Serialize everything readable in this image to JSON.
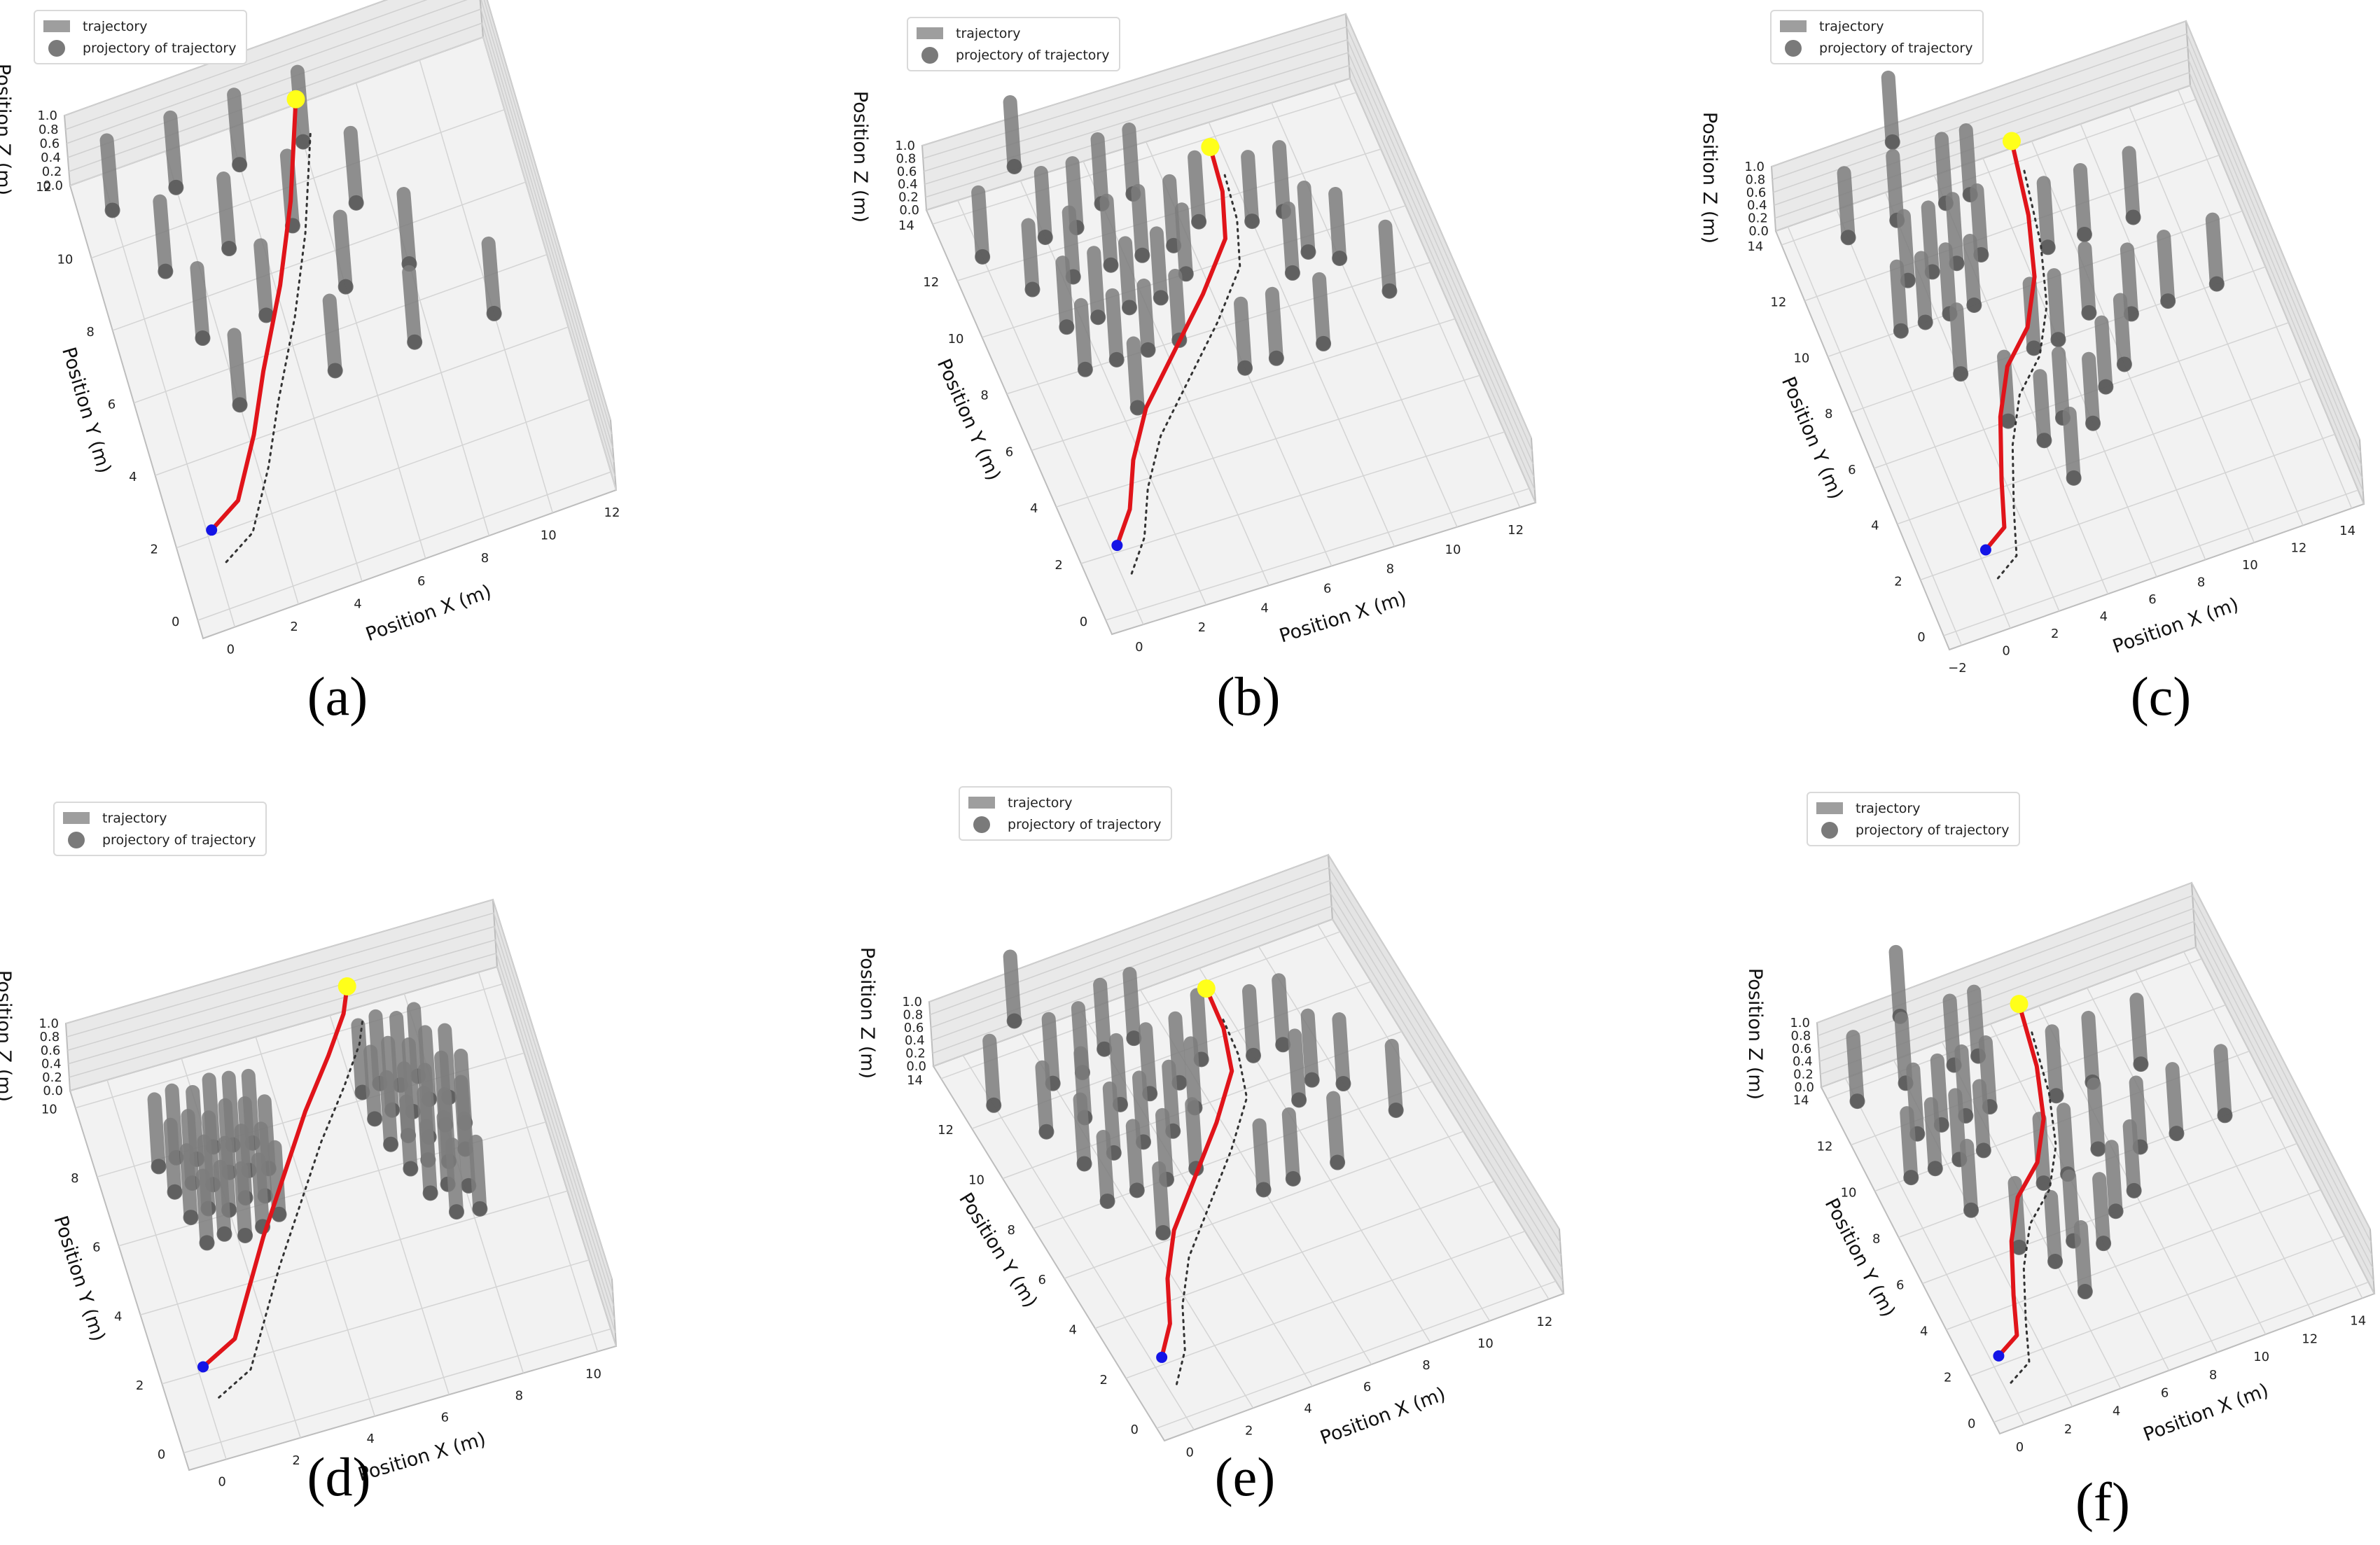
{
  "legend": {
    "trajectory": "trajectory",
    "projection": "projectory of trajectory"
  },
  "colors": {
    "trajectory_line": "#e0141a",
    "start_point": "#1414e6",
    "goal_point": "#ffff1a",
    "obstacle": "#7d7d7d",
    "projection_line": "#333333"
  },
  "chart_data": [
    {
      "id": "a",
      "label": "(a)",
      "type": "3d-trajectory",
      "xlabel": "Position X (m)",
      "ylabel": "Position Y (m)",
      "zlabel": "Position Z (m)",
      "xticks": [
        "0",
        "2",
        "4",
        "6",
        "8",
        "10",
        "12"
      ],
      "yticks": [
        "0",
        "2",
        "4",
        "6",
        "8",
        "10",
        "12"
      ],
      "zticks": [
        "0.0",
        "0.2",
        "0.4",
        "0.6",
        "0.8",
        "1.0"
      ],
      "xlim": [
        -1,
        12
      ],
      "ylim": [
        -0.5,
        12
      ],
      "zlim": [
        0,
        1
      ],
      "start": [
        0,
        1.5
      ],
      "goal": [
        6,
        11.5
      ],
      "path": [
        [
          0,
          1.5
        ],
        [
          1,
          2
        ],
        [
          2,
          3.5
        ],
        [
          2.8,
          5
        ],
        [
          3.4,
          6
        ],
        [
          4,
          7
        ],
        [
          4.5,
          8
        ],
        [
          5,
          9
        ],
        [
          5.4,
          10
        ],
        [
          5.8,
          11
        ],
        [
          6,
          11.5
        ]
      ],
      "obstacles": [
        [
          0,
          11
        ],
        [
          2,
          11
        ],
        [
          4,
          11
        ],
        [
          6,
          11
        ],
        [
          1,
          9
        ],
        [
          3,
          9
        ],
        [
          5,
          9
        ],
        [
          7,
          9
        ],
        [
          1.5,
          7
        ],
        [
          3.5,
          7
        ],
        [
          6,
          7
        ],
        [
          8,
          7
        ],
        [
          2,
          5
        ],
        [
          5,
          5
        ],
        [
          7.5,
          5
        ],
        [
          10,
          5
        ]
      ]
    },
    {
      "id": "b",
      "label": "(b)",
      "type": "3d-trajectory",
      "xlabel": "Position X (m)",
      "ylabel": "Position Y (m)",
      "zlabel": "Position Z (m)",
      "xticks": [
        "0",
        "2",
        "4",
        "6",
        "8",
        "10",
        "12"
      ],
      "yticks": [
        "0",
        "2",
        "4",
        "6",
        "8",
        "10",
        "12",
        "14"
      ],
      "zticks": [
        "0.0",
        "0.2",
        "0.4",
        "0.6",
        "0.8",
        "1.0"
      ],
      "xlim": [
        -1,
        12.5
      ],
      "ylim": [
        -0.5,
        14.5
      ],
      "zlim": [
        0,
        1
      ],
      "start": [
        0,
        1.5
      ],
      "goal": [
        7.5,
        13
      ],
      "path": [
        [
          0,
          1.5
        ],
        [
          0.8,
          2.5
        ],
        [
          1.5,
          4
        ],
        [
          2.5,
          5.5
        ],
        [
          4,
          7
        ],
        [
          5.5,
          8.5
        ],
        [
          6.8,
          10
        ],
        [
          7.3,
          11.5
        ],
        [
          7.5,
          13
        ]
      ],
      "obstacles": [
        [
          2,
          15
        ],
        [
          0,
          12.5
        ],
        [
          2,
          12.5
        ],
        [
          3,
          12.5
        ],
        [
          4,
          13
        ],
        [
          5,
          13
        ],
        [
          1,
          11
        ],
        [
          2.3,
          11
        ],
        [
          3.5,
          11
        ],
        [
          4.5,
          11
        ],
        [
          5.5,
          11
        ],
        [
          6.5,
          11.5
        ],
        [
          1.5,
          9.5
        ],
        [
          2.5,
          9.5
        ],
        [
          3.5,
          9.5
        ],
        [
          4.5,
          9.5
        ],
        [
          5.5,
          10
        ],
        [
          8,
          11
        ],
        [
          9,
          11
        ],
        [
          1.5,
          8
        ],
        [
          2.5,
          8
        ],
        [
          3.5,
          8
        ],
        [
          4.5,
          8
        ],
        [
          8.5,
          9
        ],
        [
          9.2,
          9.5
        ],
        [
          10,
          9
        ],
        [
          6,
          6.5
        ],
        [
          7,
          6.5
        ],
        [
          8.5,
          6.5
        ],
        [
          11,
          7.5
        ],
        [
          2.5,
          6.3
        ]
      ]
    },
    {
      "id": "c",
      "label": "(c)",
      "type": "3d-trajectory",
      "xlabel": "Position X (m)",
      "ylabel": "Position Y (m)",
      "zlabel": "Position Z (m)",
      "xticks": [
        "−2",
        "0",
        "2",
        "4",
        "6",
        "8",
        "10",
        "12",
        "14"
      ],
      "yticks": [
        "0",
        "2",
        "4",
        "6",
        "8",
        "10",
        "12",
        "14"
      ],
      "zticks": [
        "0.0",
        "0.2",
        "0.4",
        "0.6",
        "0.8",
        "1.0"
      ],
      "xlim": [
        -2.5,
        14.5
      ],
      "ylim": [
        -0.5,
        14.5
      ],
      "zlim": [
        0,
        1
      ],
      "start": [
        0,
        1.5
      ],
      "goal": [
        7,
        14
      ],
      "path": [
        [
          0,
          1.5
        ],
        [
          1,
          2
        ],
        [
          1.6,
          3.5
        ],
        [
          2.5,
          5.5
        ],
        [
          3.5,
          7
        ],
        [
          4.8,
          8
        ],
        [
          5.8,
          9.5
        ],
        [
          6.5,
          11.5
        ],
        [
          7,
          14
        ]
      ],
      "obstacles": [
        [
          3,
          16
        ],
        [
          0,
          13.5
        ],
        [
          2,
          13.5
        ],
        [
          4,
          13.5
        ],
        [
          5,
          13.5
        ],
        [
          1.5,
          11.5
        ],
        [
          2.5,
          11.5
        ],
        [
          3.5,
          11.5
        ],
        [
          4.5,
          11.5
        ],
        [
          0.5,
          10
        ],
        [
          1.5,
          10
        ],
        [
          2.5,
          10
        ],
        [
          3.5,
          10
        ],
        [
          7,
          11
        ],
        [
          8.5,
          11
        ],
        [
          10.5,
          11
        ],
        [
          2,
          8
        ],
        [
          5,
          8
        ],
        [
          6,
          8
        ],
        [
          7.5,
          8.5
        ],
        [
          9,
          8
        ],
        [
          10.5,
          8
        ],
        [
          12.5,
          8
        ],
        [
          3,
          6
        ],
        [
          4,
          5
        ],
        [
          5,
          5.5
        ],
        [
          6,
          5
        ],
        [
          7,
          6
        ],
        [
          8,
          6.5
        ],
        [
          4.5,
          3.5
        ]
      ]
    },
    {
      "id": "d",
      "label": "(d)",
      "type": "3d-trajectory",
      "xlabel": "Position X (m)",
      "ylabel": "Position Y (m)",
      "zlabel": "Position Z (m)",
      "xticks": [
        "0",
        "2",
        "4",
        "6",
        "8",
        "10"
      ],
      "yticks": [
        "0",
        "2",
        "4",
        "6",
        "8",
        "10"
      ],
      "zticks": [
        "0.0",
        "0.2",
        "0.4",
        "0.6",
        "0.8",
        "1.0"
      ],
      "xlim": [
        -1,
        10.5
      ],
      "ylim": [
        -0.5,
        10.5
      ],
      "zlim": [
        0,
        1
      ],
      "start": [
        0,
        1.5
      ],
      "goal": [
        6.5,
        10.5
      ],
      "path": [
        [
          0,
          1.5
        ],
        [
          1,
          2
        ],
        [
          1.6,
          3
        ],
        [
          2.5,
          4.5
        ],
        [
          3.5,
          6
        ],
        [
          4.5,
          7.5
        ],
        [
          5.5,
          8.8
        ],
        [
          6.2,
          9.8
        ],
        [
          6.5,
          10.5
        ]
      ],
      "obstacles": [
        [
          0.6,
          7.8
        ],
        [
          1.1,
          7.9
        ],
        [
          1.6,
          7.7
        ],
        [
          2.1,
          7.9
        ],
        [
          2.6,
          7.8
        ],
        [
          3.1,
          7.7
        ],
        [
          0.8,
          7
        ],
        [
          1.3,
          7.1
        ],
        [
          1.8,
          6.9
        ],
        [
          2.3,
          7.1
        ],
        [
          2.8,
          7
        ],
        [
          3.3,
          6.9
        ],
        [
          1,
          6.2
        ],
        [
          1.5,
          6.3
        ],
        [
          2,
          6.1
        ],
        [
          2.5,
          6.3
        ],
        [
          3,
          6.2
        ],
        [
          1.2,
          5.4
        ],
        [
          1.7,
          5.5
        ],
        [
          2.2,
          5.3
        ],
        [
          2.7,
          5.4
        ],
        [
          3.2,
          5.6
        ],
        [
          6.2,
          8.2
        ],
        [
          6.7,
          8.3
        ],
        [
          7.2,
          8.1
        ],
        [
          7.7,
          8.2
        ],
        [
          6.3,
          7.4
        ],
        [
          6.8,
          7.5
        ],
        [
          7.3,
          7.3
        ],
        [
          7.8,
          7.5
        ],
        [
          8.3,
          7.4
        ],
        [
          6.5,
          6.6
        ],
        [
          7,
          6.7
        ],
        [
          7.5,
          6.5
        ],
        [
          8,
          6.7
        ],
        [
          8.5,
          6.6
        ],
        [
          6.8,
          5.8
        ],
        [
          7.3,
          5.9
        ],
        [
          7.8,
          5.7
        ],
        [
          8.3,
          5.9
        ],
        [
          7.1,
          5
        ],
        [
          7.6,
          5.1
        ],
        [
          8.1,
          4.9
        ],
        [
          7.6,
          4.3
        ],
        [
          8.2,
          4.2
        ]
      ]
    },
    {
      "id": "e",
      "label": "(e)",
      "type": "3d-trajectory",
      "xlabel": "Position X (m)",
      "ylabel": "Position Y (m)",
      "zlabel": "Position Z (m)",
      "xticks": [
        "0",
        "2",
        "4",
        "6",
        "8",
        "10",
        "12"
      ],
      "yticks": [
        "0",
        "2",
        "4",
        "6",
        "8",
        "10",
        "12",
        "14"
      ],
      "zticks": [
        "0.0",
        "0.2",
        "0.4",
        "0.6",
        "0.8",
        "1.0"
      ],
      "xlim": [
        -1,
        12.5
      ],
      "ylim": [
        -0.5,
        14.5
      ],
      "zlim": [
        0,
        1
      ],
      "start": [
        0,
        1.5
      ],
      "goal": [
        7.5,
        13
      ],
      "path": [
        [
          0,
          1.5
        ],
        [
          0.8,
          2.5
        ],
        [
          1.5,
          4
        ],
        [
          2.5,
          5.5
        ],
        [
          4,
          7
        ],
        [
          5.5,
          8.5
        ],
        [
          6.8,
          10
        ],
        [
          7.3,
          11.5
        ],
        [
          7.5,
          13
        ]
      ],
      "obstacles": [
        [
          2,
          15
        ],
        [
          0,
          12.5
        ],
        [
          2,
          12.5
        ],
        [
          3,
          12.5
        ],
        [
          4,
          13
        ],
        [
          5,
          13
        ],
        [
          1,
          11
        ],
        [
          2.3,
          11
        ],
        [
          3.5,
          11
        ],
        [
          4.5,
          11
        ],
        [
          5.5,
          11
        ],
        [
          6.5,
          11.5
        ],
        [
          1.5,
          9.5
        ],
        [
          2.5,
          9.5
        ],
        [
          3.5,
          9.5
        ],
        [
          4.5,
          9.5
        ],
        [
          5.5,
          10
        ],
        [
          8,
          11
        ],
        [
          9,
          11
        ],
        [
          1.5,
          8
        ],
        [
          2.5,
          8
        ],
        [
          3.5,
          8
        ],
        [
          4.5,
          8
        ],
        [
          8.5,
          9
        ],
        [
          9.2,
          9.5
        ],
        [
          10,
          9
        ],
        [
          6,
          6.5
        ],
        [
          7,
          6.5
        ],
        [
          8.5,
          6.5
        ],
        [
          11,
          7.5
        ],
        [
          2.5,
          6.3
        ]
      ]
    },
    {
      "id": "f",
      "label": "(f)",
      "type": "3d-trajectory",
      "xlabel": "Position X (m)",
      "ylabel": "Position Y (m)",
      "zlabel": "Position Z (m)",
      "xticks": [
        "0",
        "2",
        "4",
        "6",
        "8",
        "10",
        "12",
        "14"
      ],
      "yticks": [
        "0",
        "2",
        "4",
        "6",
        "8",
        "10",
        "12",
        "14"
      ],
      "zticks": [
        "0.0",
        "0.2",
        "0.4",
        "0.6",
        "0.8",
        "1.0"
      ],
      "xlim": [
        -1,
        14.5
      ],
      "ylim": [
        -0.5,
        14.5
      ],
      "zlim": [
        0,
        1
      ],
      "start": [
        0,
        1.5
      ],
      "goal": [
        7,
        14
      ],
      "path": [
        [
          0,
          1.5
        ],
        [
          1,
          2
        ],
        [
          1.6,
          3.5
        ],
        [
          2.5,
          5.5
        ],
        [
          3.5,
          7
        ],
        [
          4.8,
          8
        ],
        [
          5.8,
          9.5
        ],
        [
          6.5,
          11.5
        ],
        [
          7,
          14
        ]
      ],
      "obstacles": [
        [
          3,
          16
        ],
        [
          0,
          13.5
        ],
        [
          2,
          13.5
        ],
        [
          4,
          13.5
        ],
        [
          5,
          13.5
        ],
        [
          1.5,
          11.5
        ],
        [
          2.5,
          11.5
        ],
        [
          3.5,
          11.5
        ],
        [
          4.5,
          11.5
        ],
        [
          0.5,
          10
        ],
        [
          1.5,
          10
        ],
        [
          2.5,
          10
        ],
        [
          3.5,
          10
        ],
        [
          7,
          11
        ],
        [
          8.5,
          11
        ],
        [
          10.5,
          11
        ],
        [
          2,
          8
        ],
        [
          5,
          8
        ],
        [
          6,
          8
        ],
        [
          7.5,
          8.5
        ],
        [
          9,
          8
        ],
        [
          10.5,
          8
        ],
        [
          12.5,
          8
        ],
        [
          3,
          6
        ],
        [
          4,
          5
        ],
        [
          5,
          5.5
        ],
        [
          6,
          5
        ],
        [
          7,
          6
        ],
        [
          8,
          6.5
        ],
        [
          4.5,
          3.5
        ]
      ]
    }
  ]
}
